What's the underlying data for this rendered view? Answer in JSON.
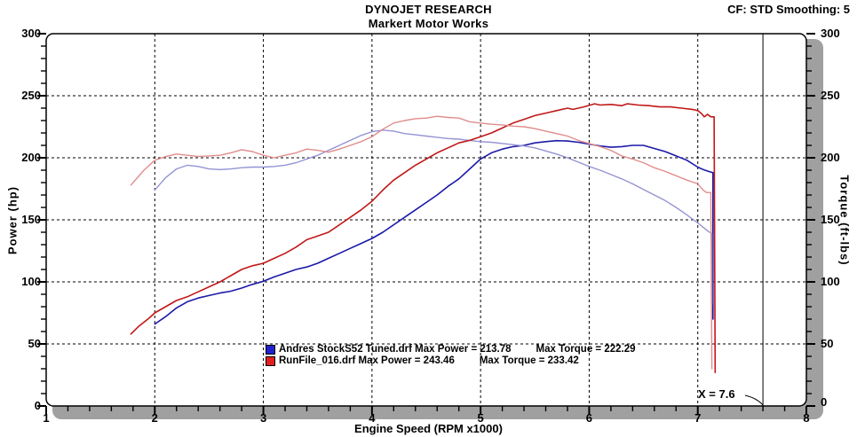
{
  "header": {
    "title": "DYNOJET RESEARCH",
    "subtitle": "Markert Motor Works",
    "settings_readout": "CF: STD  Smoothing: 5"
  },
  "chart_data": {
    "type": "line",
    "title": "DYNOJET RESEARCH",
    "subtitle": "Markert Motor Works",
    "xlabel": "Engine Speed (RPM x1000)",
    "ylabel_left": "Power (hp)",
    "ylabel_right": "Torque (ft-lbs)",
    "xlim": [
      1,
      8
    ],
    "ylim": [
      0,
      300
    ],
    "x_ticks": [
      1,
      2,
      3,
      4,
      5,
      6,
      7,
      8
    ],
    "y_ticks": [
      0,
      50,
      100,
      150,
      200,
      250,
      300
    ],
    "x_minor_step": 0.2,
    "y_minor_step": 10,
    "grid": "dashed",
    "legend_position": "bottom-center-inside",
    "cursor": {
      "x": 7.6,
      "label": "X = 7.6"
    },
    "series": [
      {
        "name": "Andres StockS52 Tuned.drf Power (hp)",
        "color": "#1a1aa8",
        "width": 1.6,
        "points": [
          [
            2.0,
            66
          ],
          [
            2.1,
            72
          ],
          [
            2.2,
            79
          ],
          [
            2.3,
            84
          ],
          [
            2.4,
            87
          ],
          [
            2.5,
            89
          ],
          [
            2.6,
            91
          ],
          [
            2.7,
            92.5
          ],
          [
            2.8,
            95
          ],
          [
            2.9,
            98
          ],
          [
            3.0,
            100.5
          ],
          [
            3.1,
            104
          ],
          [
            3.2,
            107
          ],
          [
            3.3,
            110
          ],
          [
            3.4,
            112
          ],
          [
            3.5,
            115
          ],
          [
            3.6,
            119
          ],
          [
            3.7,
            123
          ],
          [
            3.8,
            127
          ],
          [
            3.9,
            131
          ],
          [
            4.0,
            135
          ],
          [
            4.1,
            140
          ],
          [
            4.2,
            146
          ],
          [
            4.3,
            152
          ],
          [
            4.4,
            158
          ],
          [
            4.5,
            164
          ],
          [
            4.6,
            170
          ],
          [
            4.7,
            177
          ],
          [
            4.8,
            183
          ],
          [
            4.9,
            191
          ],
          [
            5.0,
            199
          ],
          [
            5.1,
            204
          ],
          [
            5.2,
            207
          ],
          [
            5.3,
            209
          ],
          [
            5.4,
            210
          ],
          [
            5.5,
            212
          ],
          [
            5.6,
            213
          ],
          [
            5.7,
            213.8
          ],
          [
            5.8,
            213.5
          ],
          [
            5.9,
            212.5
          ],
          [
            6.0,
            211
          ],
          [
            6.1,
            209.5
          ],
          [
            6.2,
            208.5
          ],
          [
            6.3,
            209
          ],
          [
            6.4,
            210
          ],
          [
            6.5,
            210
          ],
          [
            6.6,
            207.5
          ],
          [
            6.7,
            205
          ],
          [
            6.8,
            201.5
          ],
          [
            6.9,
            198
          ],
          [
            7.0,
            192.5
          ],
          [
            7.05,
            190.5
          ],
          [
            7.1,
            189
          ],
          [
            7.14,
            188
          ],
          [
            7.14,
            70
          ]
        ]
      },
      {
        "name": "Andres StockS52 Tuned.drf Torque (ft-lbs)",
        "color": "#9494d4",
        "width": 1.4,
        "points": [
          [
            2.0,
            174
          ],
          [
            2.1,
            184
          ],
          [
            2.2,
            191
          ],
          [
            2.3,
            194
          ],
          [
            2.4,
            193
          ],
          [
            2.5,
            191
          ],
          [
            2.6,
            190.5
          ],
          [
            2.7,
            191
          ],
          [
            2.8,
            192
          ],
          [
            2.9,
            192.5
          ],
          [
            3.0,
            192.5
          ],
          [
            3.1,
            193
          ],
          [
            3.2,
            194
          ],
          [
            3.3,
            196
          ],
          [
            3.4,
            199
          ],
          [
            3.5,
            202
          ],
          [
            3.6,
            206
          ],
          [
            3.7,
            210
          ],
          [
            3.8,
            214
          ],
          [
            3.9,
            218
          ],
          [
            4.0,
            221
          ],
          [
            4.1,
            222.3
          ],
          [
            4.2,
            221.5
          ],
          [
            4.3,
            219.5
          ],
          [
            4.4,
            218.5
          ],
          [
            4.5,
            217.5
          ],
          [
            4.6,
            216.5
          ],
          [
            4.7,
            215.5
          ],
          [
            4.8,
            215
          ],
          [
            4.9,
            214
          ],
          [
            5.0,
            213
          ],
          [
            5.1,
            212.5
          ],
          [
            5.25,
            211
          ],
          [
            5.4,
            209.5
          ],
          [
            5.5,
            208
          ],
          [
            5.6,
            205.5
          ],
          [
            5.7,
            203
          ],
          [
            5.8,
            200
          ],
          [
            5.9,
            196.5
          ],
          [
            6.0,
            193
          ],
          [
            6.1,
            190
          ],
          [
            6.2,
            186.5
          ],
          [
            6.3,
            183
          ],
          [
            6.4,
            179
          ],
          [
            6.5,
            174.5
          ],
          [
            6.6,
            170
          ],
          [
            6.7,
            165.5
          ],
          [
            6.8,
            160
          ],
          [
            6.9,
            154
          ],
          [
            7.0,
            147.5
          ],
          [
            7.05,
            144
          ],
          [
            7.1,
            140.5
          ],
          [
            7.13,
            139
          ],
          [
            7.13,
            82
          ]
        ]
      },
      {
        "name": "RunFile_016.drf Power (hp)",
        "color": "#c01818",
        "width": 1.6,
        "points": [
          [
            1.78,
            58
          ],
          [
            1.85,
            64
          ],
          [
            1.95,
            71
          ],
          [
            2.0,
            75
          ],
          [
            2.1,
            80
          ],
          [
            2.2,
            85
          ],
          [
            2.3,
            88
          ],
          [
            2.4,
            92
          ],
          [
            2.5,
            96
          ],
          [
            2.6,
            100
          ],
          [
            2.7,
            105
          ],
          [
            2.8,
            110
          ],
          [
            2.9,
            113
          ],
          [
            3.0,
            115
          ],
          [
            3.1,
            119
          ],
          [
            3.2,
            123
          ],
          [
            3.3,
            128
          ],
          [
            3.4,
            134
          ],
          [
            3.5,
            137
          ],
          [
            3.6,
            140
          ],
          [
            3.7,
            146
          ],
          [
            3.8,
            152
          ],
          [
            3.9,
            158
          ],
          [
            4.0,
            165
          ],
          [
            4.1,
            174
          ],
          [
            4.2,
            182
          ],
          [
            4.3,
            188
          ],
          [
            4.4,
            194
          ],
          [
            4.5,
            199
          ],
          [
            4.6,
            204
          ],
          [
            4.7,
            208
          ],
          [
            4.8,
            212
          ],
          [
            4.9,
            214
          ],
          [
            5.0,
            217
          ],
          [
            5.1,
            220
          ],
          [
            5.2,
            224
          ],
          [
            5.3,
            228
          ],
          [
            5.4,
            231
          ],
          [
            5.5,
            234
          ],
          [
            5.6,
            236
          ],
          [
            5.7,
            238
          ],
          [
            5.8,
            240
          ],
          [
            5.85,
            239
          ],
          [
            5.95,
            241
          ],
          [
            6.05,
            243.5
          ],
          [
            6.1,
            242.5
          ],
          [
            6.2,
            243
          ],
          [
            6.3,
            242
          ],
          [
            6.35,
            243.5
          ],
          [
            6.45,
            242.5
          ],
          [
            6.55,
            242
          ],
          [
            6.65,
            241
          ],
          [
            6.75,
            241
          ],
          [
            6.85,
            240
          ],
          [
            6.95,
            239
          ],
          [
            7.0,
            238
          ],
          [
            7.03,
            236
          ],
          [
            7.06,
            233
          ],
          [
            7.09,
            235
          ],
          [
            7.12,
            233
          ],
          [
            7.15,
            233
          ],
          [
            7.16,
            27
          ]
        ]
      },
      {
        "name": "RunFile_016.drf Torque (ft-lbs)",
        "color": "#e08c8c",
        "width": 1.4,
        "points": [
          [
            1.78,
            178
          ],
          [
            1.9,
            190
          ],
          [
            2.0,
            198
          ],
          [
            2.1,
            201
          ],
          [
            2.2,
            203
          ],
          [
            2.3,
            202
          ],
          [
            2.4,
            201
          ],
          [
            2.5,
            201.5
          ],
          [
            2.6,
            202
          ],
          [
            2.7,
            204
          ],
          [
            2.8,
            206.5
          ],
          [
            2.9,
            205
          ],
          [
            3.0,
            202
          ],
          [
            3.1,
            200
          ],
          [
            3.2,
            202
          ],
          [
            3.3,
            204
          ],
          [
            3.4,
            207
          ],
          [
            3.5,
            206
          ],
          [
            3.6,
            204.5
          ],
          [
            3.7,
            207
          ],
          [
            3.8,
            210
          ],
          [
            3.9,
            213
          ],
          [
            4.0,
            217
          ],
          [
            4.1,
            223
          ],
          [
            4.2,
            228
          ],
          [
            4.3,
            230
          ],
          [
            4.4,
            231.5
          ],
          [
            4.5,
            232
          ],
          [
            4.6,
            233.4
          ],
          [
            4.7,
            232.5
          ],
          [
            4.8,
            232
          ],
          [
            4.9,
            229
          ],
          [
            5.0,
            228
          ],
          [
            5.1,
            227
          ],
          [
            5.2,
            226.5
          ],
          [
            5.3,
            225.5
          ],
          [
            5.4,
            225
          ],
          [
            5.5,
            223.5
          ],
          [
            5.6,
            221.5
          ],
          [
            5.7,
            219.5
          ],
          [
            5.8,
            217.5
          ],
          [
            5.9,
            214
          ],
          [
            6.0,
            211.5
          ],
          [
            6.1,
            209
          ],
          [
            6.2,
            206
          ],
          [
            6.3,
            201.5
          ],
          [
            6.4,
            199
          ],
          [
            6.5,
            196
          ],
          [
            6.6,
            192
          ],
          [
            6.7,
            189
          ],
          [
            6.8,
            185.5
          ],
          [
            6.9,
            182
          ],
          [
            7.0,
            179
          ],
          [
            7.05,
            174
          ],
          [
            7.08,
            172
          ],
          [
            7.12,
            172
          ],
          [
            7.13,
            30
          ]
        ]
      }
    ],
    "legend": [
      {
        "swatch": "#2222cc",
        "file": "Andres StockS52 Tuned.drf",
        "max_power": "Max Power = 213.78",
        "max_torque": "Max Torque = 222.29"
      },
      {
        "swatch": "#e02020",
        "file": "RunFile_016.drf",
        "max_power": "Max Power = 243.46",
        "max_torque": "Max Torque = 233.42"
      }
    ]
  }
}
